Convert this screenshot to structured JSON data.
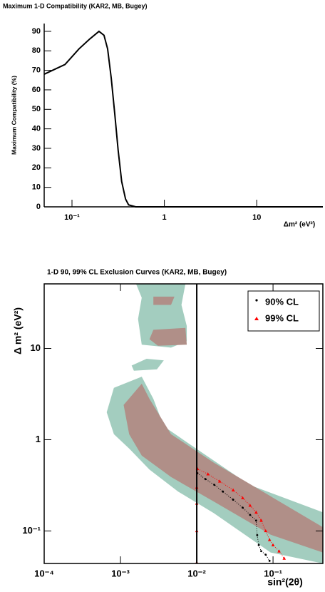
{
  "chart_data": [
    {
      "type": "line",
      "title": "Maximum 1-D Compatibility (KAR2, MB, Bugey)",
      "y_label": "Maximum Compatibility (%)",
      "x_label": "Δm² (eV²)",
      "log_x": true,
      "xlim": [
        0.05,
        52
      ],
      "ylim": [
        0,
        94
      ],
      "xticks": [
        {
          "value": 0.1,
          "label": "10⁻¹"
        },
        1,
        10
      ],
      "yticks": [
        0,
        10,
        20,
        30,
        40,
        50,
        60,
        70,
        80,
        90
      ],
      "color": "#000000",
      "x": [
        0.05,
        0.084,
        0.119,
        0.155,
        0.196,
        0.222,
        0.243,
        0.266,
        0.29,
        0.316,
        0.345,
        0.38,
        0.41,
        0.49,
        52
      ],
      "values": [
        68,
        73,
        81,
        86,
        90,
        88,
        81,
        66,
        48,
        29,
        13,
        4,
        1,
        0,
        0
      ]
    },
    {
      "type": "contour",
      "title": "1-D 90, 99% CL Exclusion Curves (KAR2, MB, Bugey)",
      "y_label": "Δ m² (eV²)",
      "x_label": "sin²(2θ)",
      "log_x": true,
      "log_y": true,
      "xlim": [
        0.0001,
        0.45
      ],
      "ylim": [
        0.044,
        51
      ],
      "xticks": [
        {
          "value": 0.0001,
          "label": "10⁻⁴"
        },
        {
          "value": 0.001,
          "label": "10⁻³"
        },
        {
          "value": 0.01,
          "label": "10⁻²"
        },
        {
          "value": 0.1,
          "label": "10⁻¹"
        }
      ],
      "yticks": [
        {
          "value": 0.1,
          "label": "10⁻¹"
        },
        1,
        10
      ],
      "regions": [
        {
          "color": "#a3cdbf",
          "x": [
            0.00082,
            0.0019,
            0.0027,
            0.0037,
            0.0098,
            0.049,
            0.45,
            0.45,
            0.093,
            0.0167,
            0.0057,
            0.0024,
            0.0013,
            0.00082,
            0.00066
          ],
          "y": [
            3.7,
            4.9,
            2.8,
            1.4,
            0.8,
            0.32,
            0.16,
            0.044,
            0.058,
            0.157,
            0.27,
            0.47,
            0.8,
            1.15,
            2.0
          ]
        },
        {
          "color": "#a3cdbf",
          "x": [
            0.0016,
            0.0071,
            0.0063,
            0.0074,
            0.0074,
            0.0046,
            0.0019,
            0.0017,
            0.0019
          ],
          "y": [
            51,
            51,
            30,
            17.6,
            12,
            10.2,
            11,
            21,
            36
          ]
        },
        {
          "color": "#a3cdbf",
          "x": [
            0.0014,
            0.0022,
            0.0037,
            0.003,
            0.0015
          ],
          "y": [
            6.5,
            7.7,
            7.4,
            5.9,
            5.7
          ]
        },
        {
          "color": "#b08f88",
          "x": [
            0.0011,
            0.0019,
            0.0024,
            0.0046,
            0.0167,
            0.45,
            0.45,
            0.093,
            0.0167,
            0.0046,
            0.0019,
            0.0013
          ],
          "y": [
            2.4,
            4.1,
            2.8,
            1.15,
            0.56,
            0.11,
            0.058,
            0.091,
            0.21,
            0.39,
            0.67,
            1.15
          ]
        },
        {
          "color": "#b08f88",
          "x": [
            0.0027,
            0.0071,
            0.0074,
            0.0031,
            0.0024
          ],
          "y": [
            16,
            16.8,
            11,
            10.7,
            12.6
          ]
        },
        {
          "color": "#b08f88",
          "x": [
            0.0027,
            0.0051,
            0.0046,
            0.0027
          ],
          "y": [
            37,
            37,
            30,
            30
          ]
        }
      ],
      "reference_line": {
        "x": 0.01,
        "color": "#000000"
      },
      "legend": "upper right",
      "series": [
        {
          "name": "90% CL",
          "color": "#000000",
          "marker": "dot",
          "x": [
            0.0102,
            0.013,
            0.017,
            0.022,
            0.03,
            0.04,
            0.05,
            0.06,
            0.062,
            0.065,
            0.07,
            0.08,
            0.09
          ],
          "values": [
            0.43,
            0.37,
            0.32,
            0.27,
            0.22,
            0.18,
            0.15,
            0.13,
            0.09,
            0.07,
            0.06,
            0.055,
            0.047
          ]
        },
        {
          "name": "99% CL",
          "color": "#ff0000",
          "marker": "triangle",
          "x": [
            0.01,
            0.01,
            0.01,
            0.01,
            0.0102,
            0.014,
            0.02,
            0.03,
            0.04,
            0.05,
            0.06,
            0.07,
            0.08,
            0.09,
            0.1,
            0.12,
            0.14
          ],
          "values": [
            0.045,
            0.1,
            0.2,
            0.3,
            0.48,
            0.42,
            0.35,
            0.28,
            0.23,
            0.19,
            0.16,
            0.13,
            0.1,
            0.08,
            0.07,
            0.06,
            0.05
          ]
        }
      ]
    }
  ]
}
